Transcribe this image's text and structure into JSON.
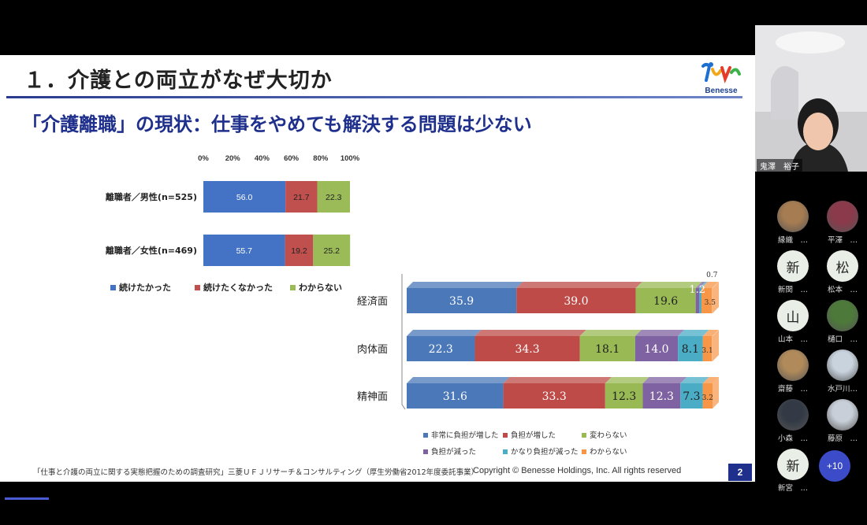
{
  "slide": {
    "title": "１．介護との両立がなぜ大切か",
    "logo_text": "Benesse",
    "subtitle": "「介護離職」の現状：仕事をやめても解決する問題は少ない",
    "footer_source": "「仕事と介護の両立に関する実態把握のための調査研究」三菱ＵＦＪリサーチ＆コンサルティング（厚生労働省2012年度委託事業）",
    "footer_copyright": "Copyright © Benesse Holdings, Inc. All rights reserved",
    "page_number": "2"
  },
  "chart_data": [
    {
      "type": "bar",
      "orientation": "horizontal-stacked-100",
      "x_ticks": [
        "0%",
        "20%",
        "40%",
        "60%",
        "80%",
        "100%"
      ],
      "categories": [
        "離職者／男性(n=525)",
        "離職者／女性(n=469)"
      ],
      "series": [
        {
          "name": "続けたかった",
          "color": "#4472c4",
          "values": [
            56.0,
            55.7
          ],
          "labels": [
            "56.0",
            "55.7"
          ]
        },
        {
          "name": "続けたくなかった",
          "color": "#c0504d",
          "values": [
            21.7,
            19.2
          ],
          "labels": [
            "21.7",
            "19.2"
          ]
        },
        {
          "name": "わからない",
          "color": "#9bbb59",
          "values": [
            22.3,
            25.2
          ],
          "labels": [
            "22.3",
            "25.2"
          ]
        }
      ],
      "legend_position": "bottom"
    },
    {
      "type": "bar",
      "orientation": "horizontal-stacked-100-3d",
      "categories": [
        "経済面",
        "肉体面",
        "精神面"
      ],
      "series": [
        {
          "name": "非常に負担が増した",
          "color": "#4a78b8",
          "values": [
            35.9,
            22.3,
            31.6
          ],
          "labels": [
            "35.9",
            "22.3",
            "31.6"
          ]
        },
        {
          "name": "負担が増した",
          "color": "#be4b48",
          "values": [
            39.0,
            34.3,
            33.3
          ],
          "labels": [
            "39.0",
            "34.3",
            "33.3"
          ]
        },
        {
          "name": "変わらない",
          "color": "#98b954",
          "values": [
            19.6,
            18.1,
            12.3
          ],
          "labels": [
            "19.6",
            "18.1",
            "12.3"
          ]
        },
        {
          "name": "負担が減った",
          "color": "#7e62a1",
          "values": [
            1.2,
            14.0,
            12.3
          ],
          "labels": [
            "1.2",
            "14.0",
            "12.3"
          ]
        },
        {
          "name": "かなり負担が減った",
          "color": "#4aacc5",
          "values": [
            0.7,
            8.1,
            7.3
          ],
          "labels": [
            "0.7",
            "8.1",
            "7.3"
          ]
        },
        {
          "name": "わからない",
          "color": "#f79646",
          "values": [
            3.5,
            3.1,
            3.2
          ],
          "labels": [
            "3.5",
            "3.1",
            "3.2"
          ]
        }
      ],
      "legend_position": "bottom"
    }
  ],
  "meeting": {
    "speaker_name": "鬼澤　裕子",
    "participants": [
      {
        "label": "縁織　…",
        "avatar": "photo-avatar-1",
        "color": "#a67c52"
      },
      {
        "label": "平澤　…",
        "avatar": "photo-avatar-2",
        "color": "#8a3a4a"
      },
      {
        "label": "新関　…",
        "avatar": "新"
      },
      {
        "label": "松本　…",
        "avatar": "松"
      },
      {
        "label": "山本　…",
        "avatar": "山"
      },
      {
        "label": "樋口　…",
        "avatar": "photo-avatar-tree",
        "color": "#4d7a3a"
      },
      {
        "label": "齋藤　…",
        "avatar": "photo-avatar-3",
        "color": "#b08a5a"
      },
      {
        "label": "水戸川…",
        "avatar": "photo-avatar-4",
        "color": "#c9d3de"
      },
      {
        "label": "小森　…",
        "avatar": "photo-avatar-5",
        "color": "#333a45"
      },
      {
        "label": "藤原　…",
        "avatar": "photo-avatar-6",
        "color": "#c8cfd8"
      },
      {
        "label": "新宮　…",
        "avatar": "新"
      }
    ],
    "more_count": "+10"
  }
}
